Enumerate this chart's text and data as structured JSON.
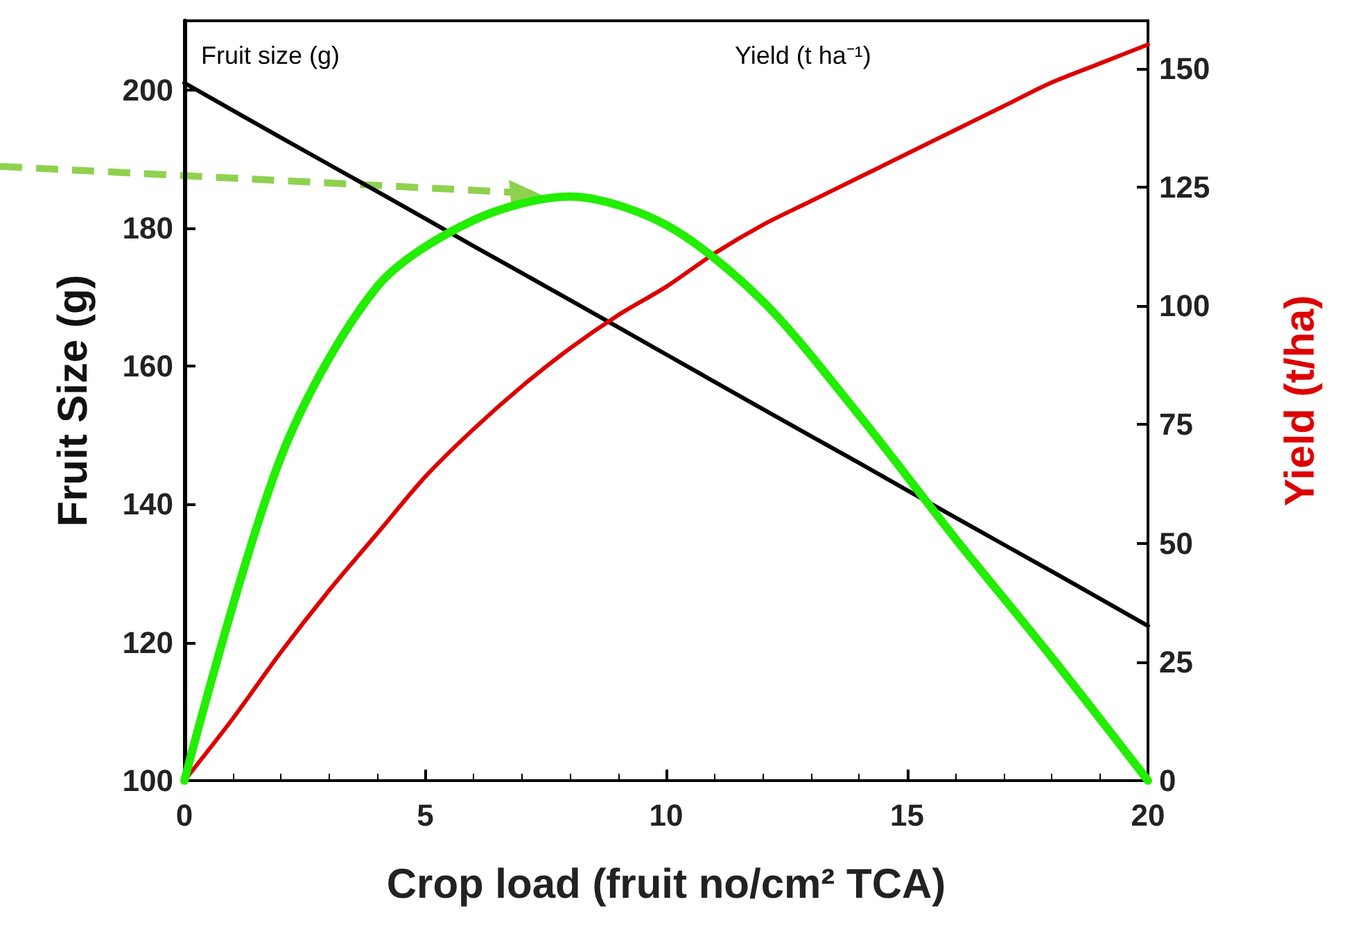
{
  "chart_data": {
    "type": "line",
    "xlabel": "Crop load (fruit no/cm² TCA)",
    "ylabel": "Fruit Size (g)",
    "y2label": "Yield (t/ha)",
    "x": [
      0,
      2,
      4,
      6,
      8,
      10,
      12,
      14,
      16,
      18,
      20
    ],
    "xlim": [
      0,
      20
    ],
    "xticks": [
      0,
      5,
      10,
      15,
      20
    ],
    "ylim": [
      100,
      210
    ],
    "yticks": [
      100,
      120,
      140,
      160,
      180,
      200
    ],
    "y2lim": [
      0,
      160
    ],
    "y2ticks": [
      0,
      25,
      50,
      75,
      100,
      125,
      150
    ],
    "series": [
      {
        "color": "#000000",
        "values": [
          201,
          193.1,
          185.3,
          177.4,
          169.6,
          161.7,
          153.8,
          146,
          138.1,
          130.3,
          122.4
        ]
      },
      {
        "color": "#dd0000",
        "axis": "y2",
        "x": [
          0,
          1,
          2,
          3,
          4,
          5,
          6,
          7,
          8,
          9,
          10,
          11,
          12,
          13,
          14,
          15,
          16,
          17,
          18,
          19,
          20
        ],
        "values": [
          0,
          13,
          27,
          40,
          52,
          64,
          74,
          83,
          91,
          98,
          104,
          111,
          117,
          122,
          127,
          132,
          137,
          142,
          147,
          151,
          155
        ]
      },
      {
        "color": "#22ee00",
        "axis": "y2",
        "values": [
          0,
          68,
          104,
          118,
          123,
          117,
          101,
          77,
          51,
          26,
          0
        ]
      }
    ],
    "annotations": [
      "Fruit size (g)",
      "Yield (t ha⁻¹)"
    ],
    "marker": "none",
    "line_style": "solid",
    "grid": false
  }
}
